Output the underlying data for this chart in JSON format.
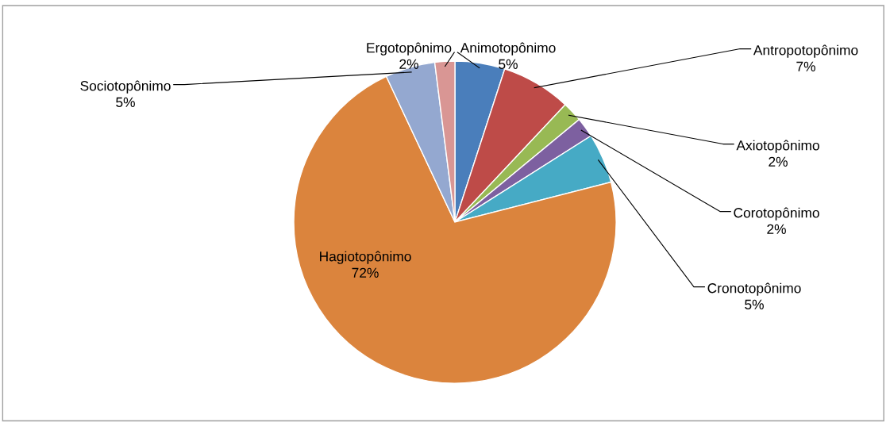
{
  "chart_data": {
    "type": "pie",
    "categories": [
      "Animotopônimo",
      "Antropotopônimo",
      "Axiotopônimo",
      "Corotopônimo",
      "Cronotopônimo",
      "Hagiotopônimo",
      "Sociotopônimo",
      "Ergotopônimo"
    ],
    "values": [
      5,
      7,
      2,
      2,
      5,
      72,
      5,
      2
    ],
    "value_labels": [
      "5%",
      "7%",
      "2%",
      "2%",
      "5%",
      "72%",
      "5%",
      "2%"
    ],
    "colors": [
      "#4a7ebb",
      "#be4b48",
      "#98b954",
      "#7d60a0",
      "#46aac5",
      "#db843d",
      "#94a8d0",
      "#d99694"
    ]
  }
}
